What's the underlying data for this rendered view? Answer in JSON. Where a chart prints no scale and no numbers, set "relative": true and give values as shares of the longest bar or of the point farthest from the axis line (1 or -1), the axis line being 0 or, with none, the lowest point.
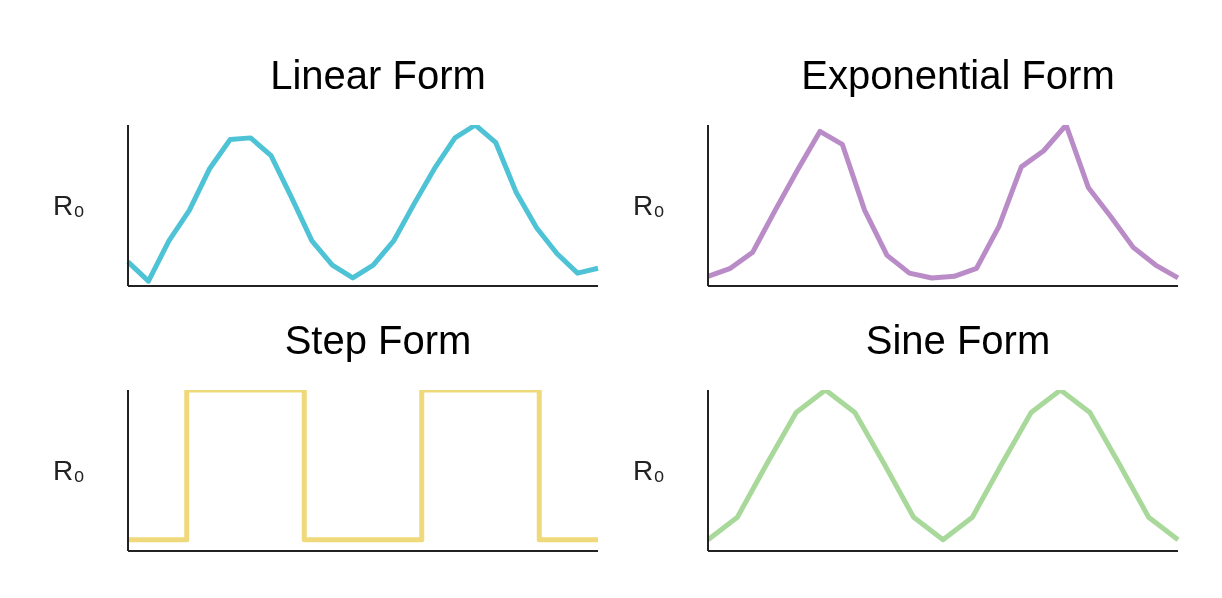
{
  "chart_data": [
    {
      "type": "line",
      "title": "Linear Form",
      "ylabel": "R₀",
      "relative": true,
      "marker": "none",
      "line_style": "solid",
      "color": "#4fc3d6",
      "categories": [
        null,
        null,
        null,
        null,
        null,
        null,
        null,
        null,
        null,
        null,
        null,
        null,
        null,
        null,
        null,
        null,
        null,
        null,
        null,
        null,
        null,
        null,
        null,
        null
      ],
      "values": [
        0.15,
        0.03,
        0.28,
        0.47,
        0.73,
        0.91,
        0.92,
        0.81,
        0.55,
        0.28,
        0.13,
        0.05,
        0.13,
        0.28,
        0.51,
        0.73,
        0.92,
        1,
        0.89,
        0.58,
        0.36,
        0.2,
        0.08,
        0.11
      ]
    },
    {
      "type": "line",
      "title": "Exponential Form",
      "ylabel": "R₀",
      "relative": true,
      "marker": "none",
      "line_style": "solid",
      "color": "#b98cc8",
      "categories": [
        null,
        null,
        null,
        null,
        null,
        null,
        null,
        null,
        null,
        null,
        null,
        null,
        null,
        null,
        null,
        null,
        null,
        null,
        null,
        null,
        null,
        null
      ],
      "values": [
        0.06,
        0.11,
        0.21,
        0.47,
        0.72,
        0.96,
        0.88,
        0.47,
        0.19,
        0.08,
        0.05,
        0.06,
        0.11,
        0.37,
        0.74,
        0.84,
        1,
        0.61,
        0.43,
        0.24,
        0.13,
        0.05
      ]
    },
    {
      "type": "step",
      "title": "Step Form",
      "ylabel": "R₀",
      "relative": true,
      "marker": "none",
      "line_style": "solid",
      "color": "#efd97a",
      "categories": [
        null,
        null,
        null,
        null,
        null,
        null,
        null,
        null,
        null
      ],
      "values": [
        0.07,
        1,
        1,
        0.07,
        0.07,
        1,
        1,
        0.07,
        0.07
      ]
    },
    {
      "type": "line",
      "title": "Sine Form",
      "ylabel": "R₀",
      "relative": true,
      "marker": "none",
      "line_style": "solid",
      "color": "#a8d99a",
      "categories": [
        null,
        null,
        null,
        null,
        null,
        null,
        null,
        null,
        null,
        null,
        null,
        null,
        null,
        null,
        null,
        null,
        null
      ],
      "values": [
        0.07,
        0.21,
        0.54,
        0.86,
        1,
        0.86,
        0.54,
        0.21,
        0.07,
        0.21,
        0.54,
        0.86,
        1,
        0.86,
        0.54,
        0.21,
        0.07
      ]
    }
  ]
}
